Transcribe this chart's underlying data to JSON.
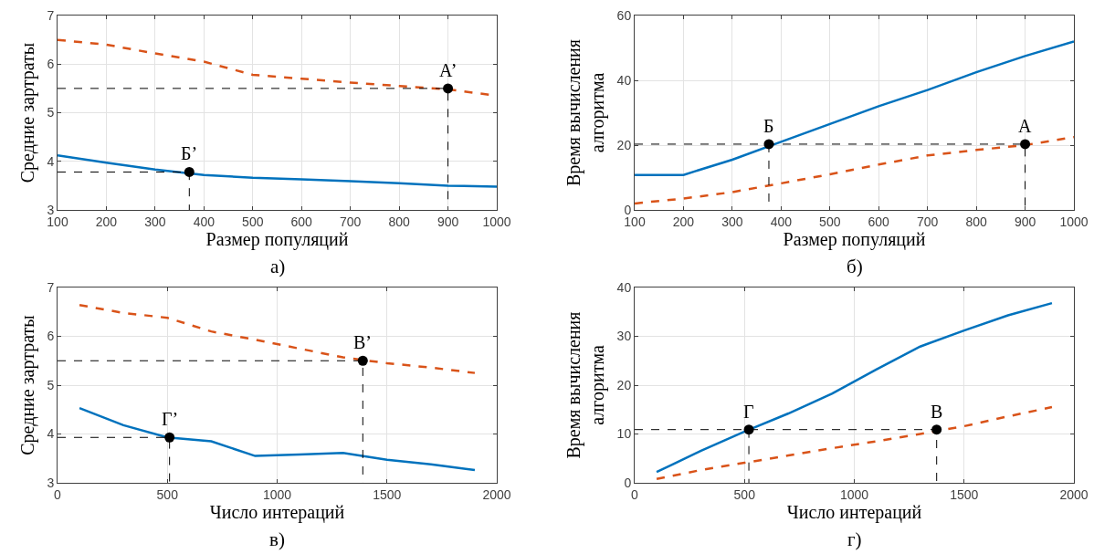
{
  "chart_data": [
    {
      "type": "line",
      "xlabel": "Размер популяций",
      "ylabel": "Средние зартраты",
      "annotations": [
        "а)",
        {
          "text": "А’",
          "x": 900,
          "y": 5.5
        },
        {
          "text": "Б’",
          "x": 370,
          "y": 3.78
        }
      ],
      "x": [
        100,
        200,
        300,
        400,
        500,
        600,
        700,
        800,
        900,
        1000
      ],
      "xlim": [
        100,
        1000
      ],
      "xticks": [
        100,
        200,
        300,
        400,
        500,
        600,
        700,
        800,
        900,
        1000
      ],
      "ylim": [
        3,
        7
      ],
      "yticks": [
        3,
        4,
        5,
        6,
        7
      ],
      "grid": true,
      "marker": "none",
      "series": [
        {
          "color": "#0072bd",
          "line_style": "solid",
          "values": [
            4.12,
            3.97,
            3.83,
            3.72,
            3.66,
            3.63,
            3.59,
            3.55,
            3.5,
            3.48
          ]
        },
        {
          "color": "#d95319",
          "line_style": "dashed",
          "values": [
            6.5,
            6.4,
            6.22,
            6.05,
            5.78,
            5.7,
            5.62,
            5.55,
            5.48,
            5.35
          ]
        },
        {
          "type": "line",
          "color": "#000000",
          "line_style": "dashed",
          "marker": "none",
          "x": [
            100,
            900,
            900
          ],
          "values": [
            5.5,
            5.5,
            3
          ]
        },
        {
          "type": "line",
          "color": "#000000",
          "line_style": "dashed",
          "marker": "none",
          "x": [
            100,
            370,
            370
          ],
          "values": [
            3.78,
            3.78,
            3
          ]
        },
        {
          "type": "scatter",
          "color": "#000000",
          "marker": "circle",
          "x": [
            900,
            370
          ],
          "values": [
            5.5,
            3.78
          ]
        }
      ]
    },
    {
      "type": "line",
      "xlabel": "Размер популяций",
      "ylabel": "Время вычисления\nалгоритма",
      "annotations": [
        "б)",
        {
          "text": "Б",
          "x": 375,
          "y": 20.3
        },
        {
          "text": "А",
          "x": 900,
          "y": 20.3
        }
      ],
      "x": [
        100,
        200,
        300,
        400,
        500,
        600,
        700,
        800,
        900,
        1000
      ],
      "xlim": [
        100,
        1000
      ],
      "xticks": [
        100,
        200,
        300,
        400,
        500,
        600,
        700,
        800,
        900,
        1000
      ],
      "ylim": [
        0,
        60
      ],
      "yticks": [
        0,
        20,
        40,
        60
      ],
      "grid": true,
      "marker": "none",
      "series": [
        {
          "color": "#0072bd",
          "line_style": "solid",
          "values": [
            10.8,
            10.8,
            15.5,
            21,
            26.5,
            32,
            37,
            42.5,
            47.5,
            52
          ]
        },
        {
          "color": "#d95319",
          "line_style": "dashed",
          "values": [
            2,
            3.5,
            5.5,
            8.2,
            11,
            14,
            16.8,
            18.5,
            20,
            22.5
          ]
        },
        {
          "type": "line",
          "color": "#000000",
          "line_style": "dashed",
          "marker": "none",
          "x": [
            100,
            900,
            900
          ],
          "values": [
            20.3,
            20.3,
            0
          ]
        },
        {
          "type": "line",
          "color": "#000000",
          "line_style": "dashed",
          "marker": "none",
          "x": [
            375,
            375
          ],
          "values": [
            20.3,
            0
          ]
        },
        {
          "type": "scatter",
          "color": "#000000",
          "marker": "circle",
          "x": [
            375,
            900
          ],
          "values": [
            20.3,
            20.3
          ]
        }
      ]
    },
    {
      "type": "line",
      "xlabel": "Число интераций",
      "ylabel": "Средние зартраты",
      "annotations": [
        "в)",
        {
          "text": "Г’",
          "x": 510,
          "y": 3.93
        },
        {
          "text": "В’",
          "x": 1390,
          "y": 5.5
        }
      ],
      "x": [
        100,
        300,
        500,
        700,
        900,
        1100,
        1300,
        1500,
        1700,
        1900
      ],
      "xlim": [
        0,
        2000
      ],
      "xticks": [
        0,
        500,
        1000,
        1500,
        2000
      ],
      "ylim": [
        3,
        7
      ],
      "yticks": [
        3,
        4,
        5,
        6,
        7
      ],
      "grid": true,
      "marker": "none",
      "series": [
        {
          "color": "#0072bd",
          "line_style": "solid",
          "values": [
            4.53,
            4.18,
            3.93,
            3.85,
            3.55,
            3.58,
            3.61,
            3.47,
            3.38,
            3.26
          ]
        },
        {
          "color": "#d95319",
          "line_style": "dashed",
          "values": [
            6.64,
            6.48,
            6.38,
            6.1,
            5.93,
            5.75,
            5.57,
            5.45,
            5.36,
            5.25
          ]
        },
        {
          "type": "line",
          "color": "#000000",
          "line_style": "dashed",
          "marker": "none",
          "x": [
            0,
            1390,
            1390
          ],
          "values": [
            5.5,
            5.5,
            3
          ]
        },
        {
          "type": "line",
          "color": "#000000",
          "line_style": "dashed",
          "marker": "none",
          "x": [
            0,
            510,
            510
          ],
          "values": [
            3.93,
            3.93,
            3
          ]
        },
        {
          "type": "scatter",
          "color": "#000000",
          "marker": "circle",
          "x": [
            510,
            1390
          ],
          "values": [
            3.93,
            5.5
          ]
        }
      ]
    },
    {
      "type": "line",
      "xlabel": "Число интераций",
      "ylabel": "Время вычисления\nалгоритма",
      "annotations": [
        "г)",
        {
          "text": "Г",
          "x": 520,
          "y": 10.9
        },
        {
          "text": "В",
          "x": 1375,
          "y": 10.9
        }
      ],
      "x": [
        100,
        300,
        500,
        700,
        900,
        1100,
        1300,
        1500,
        1700,
        1900
      ],
      "xlim": [
        0,
        2000
      ],
      "xticks": [
        0,
        500,
        1000,
        1500,
        2000
      ],
      "ylim": [
        0,
        40
      ],
      "yticks": [
        0,
        10,
        20,
        30,
        40
      ],
      "grid": true,
      "marker": "none",
      "series": [
        {
          "color": "#0072bd",
          "line_style": "solid",
          "values": [
            2.2,
            6.5,
            10.5,
            14.2,
            18.3,
            23.2,
            27.9,
            31.2,
            34.3,
            36.8
          ]
        },
        {
          "color": "#d95319",
          "line_style": "dashed",
          "values": [
            0.8,
            2.6,
            4.1,
            5.6,
            7.1,
            8.5,
            10,
            11.6,
            13.6,
            15.5
          ]
        },
        {
          "type": "line",
          "color": "#000000",
          "line_style": "dashed",
          "marker": "none",
          "x": [
            0,
            1375,
            1375
          ],
          "values": [
            10.9,
            10.9,
            0
          ]
        },
        {
          "type": "line",
          "color": "#000000",
          "line_style": "dashed",
          "marker": "none",
          "x": [
            520,
            520
          ],
          "values": [
            10.9,
            0
          ]
        },
        {
          "type": "scatter",
          "color": "#000000",
          "marker": "circle",
          "x": [
            520,
            1375
          ],
          "values": [
            10.9,
            10.9
          ]
        }
      ]
    }
  ]
}
